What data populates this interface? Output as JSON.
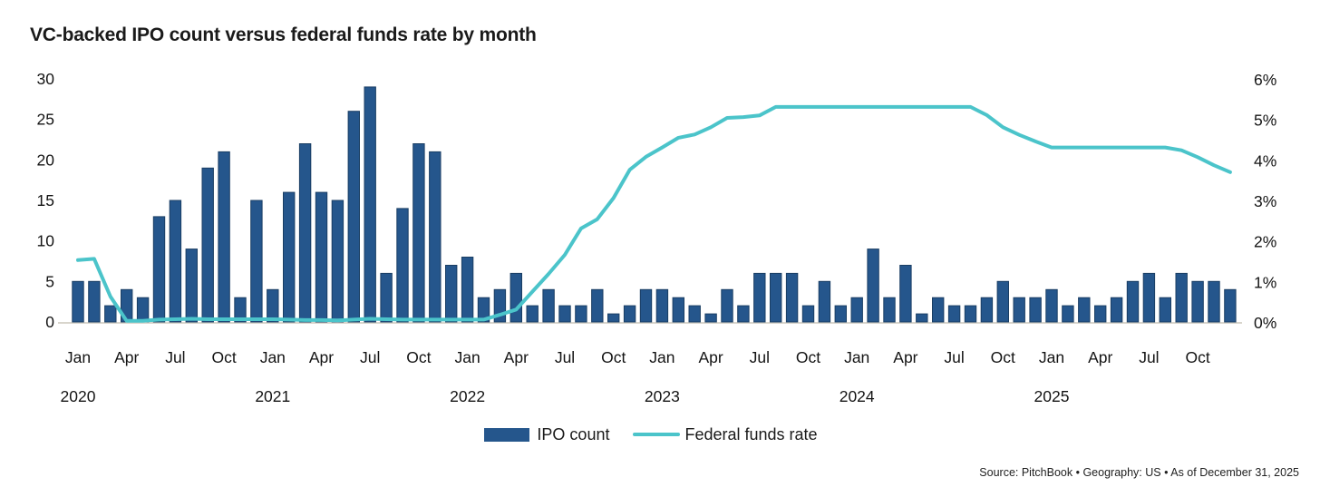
{
  "title": "VC-backed IPO count versus federal funds rate by month",
  "legend": {
    "bar_label": "IPO count",
    "line_label": "Federal funds rate"
  },
  "source_note": "Source: PitchBook • Geography: US • As of December 31, 2025",
  "colors": {
    "bar": "#25568C",
    "bar_stroke": "#1A3E63",
    "line": "#4BC4CA",
    "axis": "#D8D5CC",
    "text": "#141414",
    "title": "#1A1A1A"
  },
  "chart_data": {
    "type": "combo-bar-line",
    "title": "VC-backed IPO count versus federal funds rate by month",
    "grid": false,
    "legend_position": "bottom-center",
    "months": [
      "Jan",
      "Feb",
      "Mar",
      "Apr",
      "May",
      "Jun",
      "Jul",
      "Aug",
      "Sep",
      "Oct",
      "Nov",
      "Dec"
    ],
    "x_axis": {
      "month_tick_labels": [
        "Jan",
        "Apr",
        "Jul",
        "Oct"
      ],
      "year_labels": [
        "2020",
        "2021",
        "2022",
        "2023",
        "2024",
        "2025"
      ]
    },
    "y_axis_left": {
      "label": "IPO count",
      "ticks": [
        0,
        5,
        10,
        15,
        20,
        25,
        30
      ],
      "range": [
        0,
        30
      ]
    },
    "y_axis_right": {
      "label": "Federal funds rate",
      "ticks": [
        "0%",
        "1%",
        "2%",
        "3%",
        "4%",
        "5%",
        "6%"
      ],
      "range_pct": [
        0,
        6
      ]
    },
    "series": [
      {
        "name": "IPO count",
        "type": "bar",
        "axis": "left",
        "by_year": {
          "2020": [
            5,
            5,
            2,
            4,
            3,
            13,
            15,
            9,
            19,
            21,
            3,
            15
          ],
          "2021": [
            4,
            16,
            22,
            16,
            15,
            26,
            29,
            6,
            14,
            22,
            21,
            7
          ],
          "2022": [
            8,
            3,
            4,
            6,
            2,
            4,
            2,
            2,
            4,
            1,
            2,
            4
          ],
          "2023": [
            4,
            3,
            2,
            1,
            4,
            2,
            6,
            6,
            6,
            2,
            5,
            2
          ],
          "2024": [
            3,
            9,
            3,
            7,
            1,
            3,
            2,
            2,
            3,
            5,
            3,
            3
          ],
          "2025": [
            4,
            2,
            3,
            2,
            3,
            5,
            6,
            3,
            6,
            5,
            5,
            4
          ]
        }
      },
      {
        "name": "Federal funds rate",
        "type": "line",
        "axis": "right",
        "unit": "%",
        "by_year": {
          "2020": [
            1.55,
            1.58,
            0.65,
            0.05,
            0.05,
            0.08,
            0.09,
            0.1,
            0.09,
            0.09,
            0.09,
            0.09
          ],
          "2021": [
            0.09,
            0.08,
            0.07,
            0.07,
            0.06,
            0.08,
            0.1,
            0.09,
            0.08,
            0.08,
            0.08,
            0.08
          ],
          "2022": [
            0.08,
            0.08,
            0.2,
            0.33,
            0.77,
            1.21,
            1.68,
            2.33,
            2.56,
            3.08,
            3.78,
            4.1
          ],
          "2023": [
            4.33,
            4.57,
            4.65,
            4.83,
            5.06,
            5.08,
            5.12,
            5.33,
            5.33,
            5.33,
            5.33,
            5.33
          ],
          "2024": [
            5.33,
            5.33,
            5.33,
            5.33,
            5.33,
            5.33,
            5.33,
            5.33,
            5.13,
            4.83,
            4.64,
            4.48
          ],
          "2025": [
            4.33,
            4.33,
            4.33,
            4.33,
            4.33,
            4.33,
            4.33,
            4.33,
            4.26,
            4.09,
            3.89,
            3.72
          ]
        }
      }
    ]
  }
}
